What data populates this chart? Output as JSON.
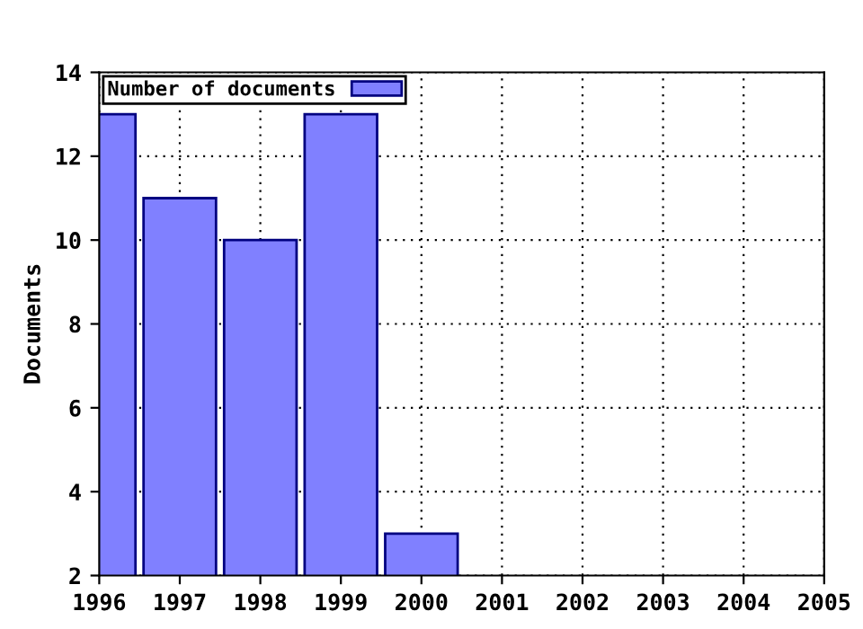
{
  "chart_data": {
    "type": "bar",
    "ylabel": "Documents",
    "x": [
      1996,
      1997,
      1998,
      1999,
      2000
    ],
    "series": [
      {
        "name": "Number of documents",
        "color": "#8080ff",
        "values": [
          13,
          11,
          10,
          13,
          3
        ]
      }
    ],
    "xlim": [
      1996,
      2005
    ],
    "xticks": [
      1996,
      1997,
      1998,
      1999,
      2000,
      2001,
      2002,
      2003,
      2004,
      2005
    ],
    "ylim": [
      2,
      14
    ],
    "yticks": [
      2,
      4,
      6,
      8,
      10,
      12,
      14
    ],
    "grid": true,
    "legend": "top left"
  }
}
